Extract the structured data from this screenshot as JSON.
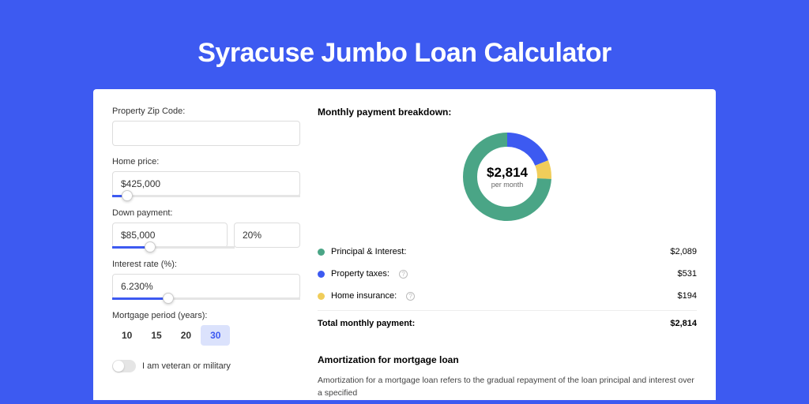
{
  "page": {
    "title": "Syracuse Jumbo Loan Calculator",
    "background_color": "#3d5af1",
    "card_background": "#ffffff"
  },
  "form": {
    "zip": {
      "label": "Property Zip Code:",
      "value": ""
    },
    "home_price": {
      "label": "Home price:",
      "value": "$425,000",
      "slider_pct": 8
    },
    "down_payment": {
      "label": "Down payment:",
      "amount": "$85,000",
      "percent": "20%",
      "slider_pct": 20
    },
    "interest_rate": {
      "label": "Interest rate (%):",
      "value": "6.230%",
      "slider_pct": 30
    },
    "period": {
      "label": "Mortgage period (years):",
      "options": [
        "10",
        "15",
        "20",
        "30"
      ],
      "selected": "30"
    },
    "veteran": {
      "label": "I am veteran or military",
      "checked": false
    }
  },
  "breakdown": {
    "title": "Monthly payment breakdown:",
    "donut": {
      "center_amount": "$2,814",
      "center_sub": "per month",
      "segments": [
        {
          "label": "Principal & Interest:",
          "value": "$2,089",
          "color": "#4aa586",
          "pct": 74.2,
          "info": false
        },
        {
          "label": "Property taxes:",
          "value": "$531",
          "color": "#3d5af1",
          "pct": 18.9,
          "info": true
        },
        {
          "label": "Home insurance:",
          "value": "$194",
          "color": "#f0cd5a",
          "pct": 6.9,
          "info": true
        }
      ]
    },
    "total": {
      "label": "Total monthly payment:",
      "value": "$2,814"
    }
  },
  "amortization": {
    "title": "Amortization for mortgage loan",
    "text": "Amortization for a mortgage loan refers to the gradual repayment of the loan principal and interest over a specified"
  },
  "styling": {
    "title_fontsize": 34,
    "title_color": "#ffffff",
    "label_fontsize": 11,
    "input_border": "#dddddd",
    "slider_fill": "#3d5af1",
    "slider_track": "#e5e5e5",
    "period_active_bg": "#dbe2fc",
    "period_active_color": "#3d5af1",
    "donut_stroke_width": 18
  }
}
